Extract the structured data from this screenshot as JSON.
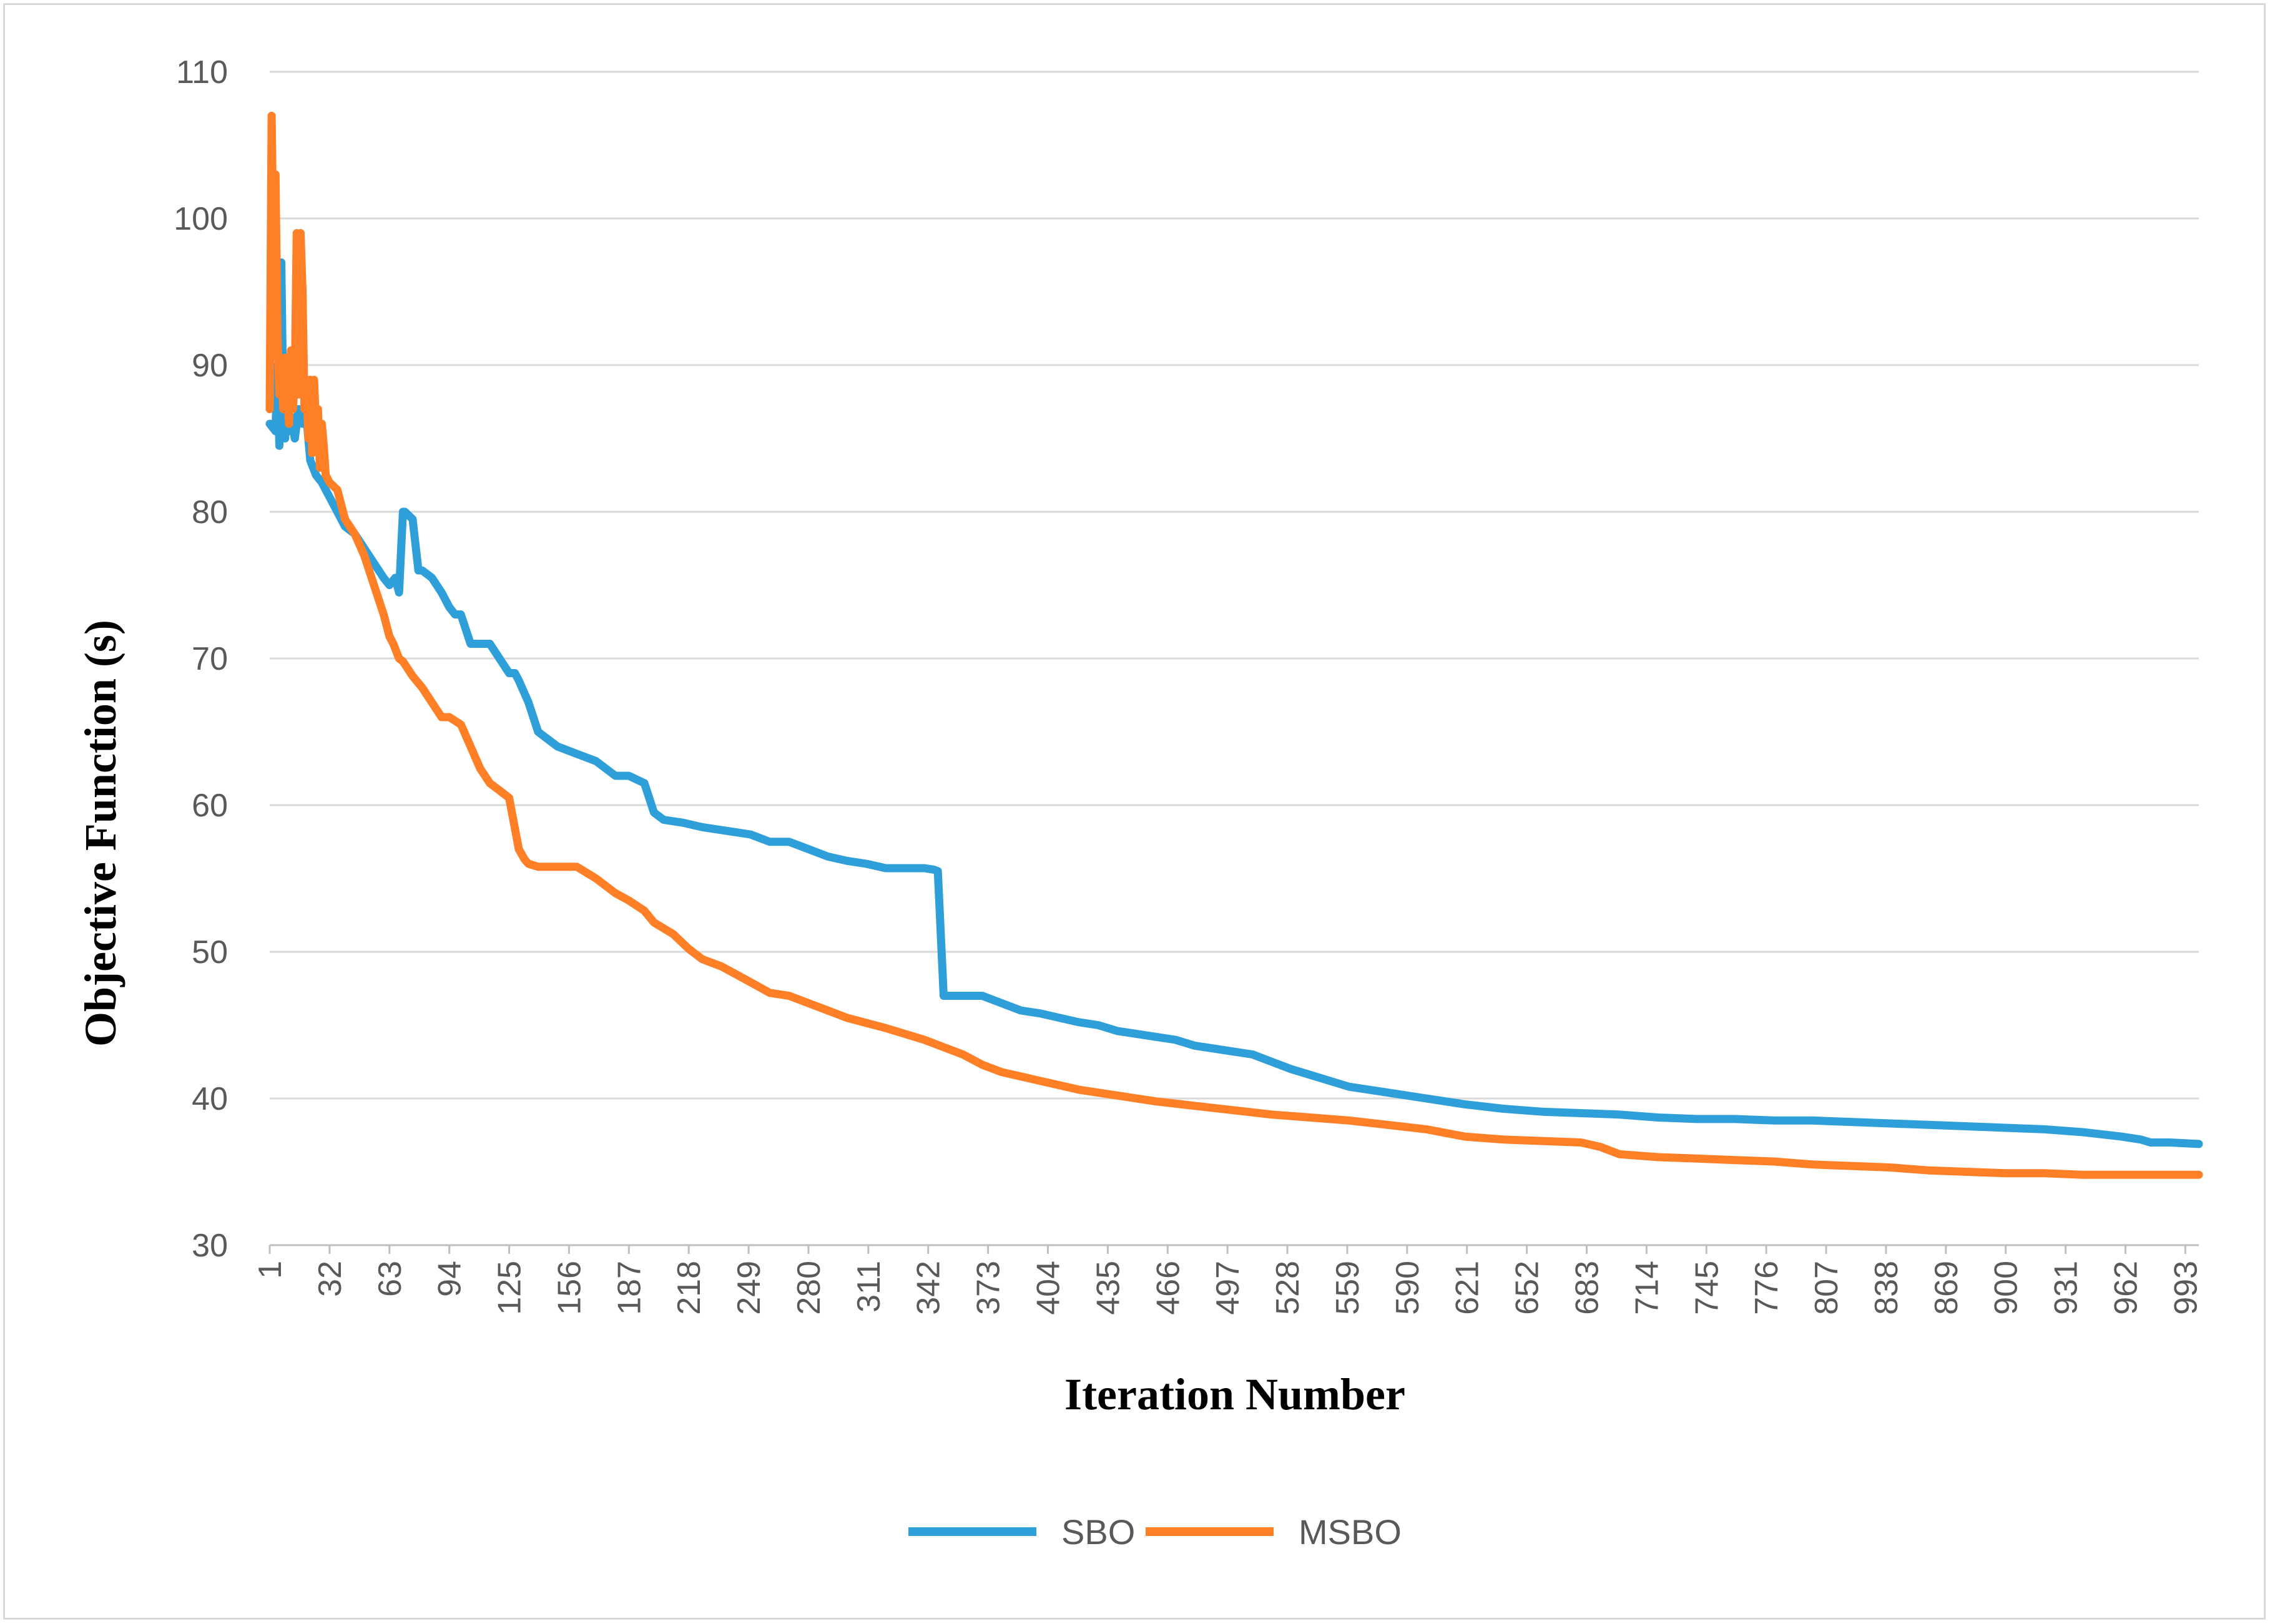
{
  "chart_data": {
    "type": "line",
    "title": "",
    "xlabel": "Iteration Number",
    "ylabel": "Objective Function (s)",
    "ylim": [
      30,
      110
    ],
    "yticks": [
      30,
      40,
      50,
      60,
      70,
      80,
      90,
      100,
      110
    ],
    "xlim": [
      1,
      1000
    ],
    "xticks": [
      "1",
      "32",
      "63",
      "94",
      "125",
      "156",
      "187",
      "218",
      "249",
      "280",
      "311",
      "342",
      "373",
      "404",
      "435",
      "466",
      "497",
      "528",
      "559",
      "590",
      "621",
      "652",
      "683",
      "714",
      "745",
      "776",
      "807",
      "838",
      "869",
      "900",
      "931",
      "962",
      "993"
    ],
    "grid": true,
    "legend_position": "bottom",
    "colors": {
      "SBO": "#2e9fd8",
      "MSBO": "#ff7f27",
      "grid": "#d9d9d9"
    },
    "series": [
      {
        "name": "SBO",
        "x": [
          1,
          4,
          5,
          6,
          7,
          8,
          9,
          10,
          11,
          12,
          14,
          16,
          18,
          20,
          22,
          25,
          28,
          32,
          36,
          40,
          45,
          50,
          55,
          60,
          63,
          66,
          68,
          70,
          71,
          75,
          78,
          80,
          85,
          90,
          94,
          97,
          100,
          105,
          110,
          115,
          120,
          125,
          128,
          130,
          135,
          140,
          145,
          150,
          160,
          170,
          180,
          187,
          195,
          200,
          205,
          215,
          225,
          240,
          250,
          260,
          270,
          280,
          290,
          300,
          310,
          320,
          330,
          340,
          345,
          347,
          350,
          355,
          360,
          370,
          380,
          390,
          400,
          410,
          420,
          430,
          440,
          450,
          460,
          470,
          480,
          490,
          500,
          510,
          520,
          530,
          540,
          550,
          560,
          580,
          600,
          620,
          640,
          660,
          680,
          700,
          720,
          740,
          760,
          780,
          800,
          820,
          840,
          860,
          880,
          900,
          920,
          940,
          960,
          970,
          975,
          985,
          1000
        ],
        "values": [
          86,
          85.5,
          90,
          84.5,
          97,
          87,
          85,
          87,
          85.5,
          86.5,
          85,
          87,
          86,
          86.5,
          83.5,
          82.5,
          82,
          81,
          80,
          79,
          78.5,
          77.5,
          76.5,
          75.5,
          75,
          75.5,
          74.5,
          80,
          80,
          79.5,
          76,
          76,
          75.5,
          74.5,
          73.5,
          73,
          73,
          71,
          71,
          71,
          70,
          69,
          69,
          68.5,
          67,
          65,
          64.5,
          64,
          63.5,
          63,
          62,
          62,
          61.5,
          59.5,
          59,
          58.8,
          58.5,
          58.2,
          58,
          57.5,
          57.5,
          57,
          56.5,
          56.2,
          56,
          55.7,
          55.7,
          55.7,
          55.6,
          55.5,
          47,
          47,
          47,
          47,
          46.5,
          46,
          45.8,
          45.5,
          45.2,
          45,
          44.6,
          44.4,
          44.2,
          44,
          43.6,
          43.4,
          43.2,
          43,
          42.5,
          42,
          41.6,
          41.2,
          40.8,
          40.4,
          40,
          39.6,
          39.3,
          39.1,
          39,
          38.9,
          38.7,
          38.6,
          38.6,
          38.5,
          38.5,
          38.4,
          38.3,
          38.2,
          38.1,
          38,
          37.9,
          37.7,
          37.4,
          37.2,
          37,
          37,
          36.9
        ]
      },
      {
        "name": "MSBO",
        "x": [
          1,
          2,
          3,
          4,
          5,
          6,
          7,
          8,
          9,
          10,
          11,
          12,
          13,
          14,
          15,
          16,
          17,
          18,
          19,
          20,
          21,
          22,
          23,
          24,
          25,
          26,
          27,
          28,
          29,
          30,
          32,
          36,
          40,
          45,
          50,
          55,
          60,
          63,
          65,
          68,
          70,
          75,
          80,
          85,
          90,
          94,
          100,
          105,
          110,
          115,
          120,
          125,
          130,
          133,
          135,
          140,
          150,
          160,
          170,
          180,
          187,
          195,
          200,
          210,
          218,
          225,
          235,
          249,
          260,
          270,
          280,
          290,
          300,
          320,
          340,
          350,
          360,
          370,
          380,
          400,
          420,
          440,
          460,
          480,
          500,
          520,
          540,
          560,
          580,
          600,
          620,
          640,
          660,
          680,
          690,
          700,
          720,
          740,
          760,
          780,
          800,
          820,
          840,
          860,
          880,
          900,
          920,
          940,
          960,
          980,
          1000
        ],
        "values": [
          87,
          107,
          97,
          103,
          92,
          88,
          90,
          87,
          90.5,
          88,
          86,
          91,
          87,
          89,
          99,
          88,
          99,
          95,
          87,
          89,
          85,
          89,
          84,
          89,
          85.5,
          87,
          83,
          86,
          84.5,
          82.5,
          82,
          81.5,
          79.5,
          78.5,
          77,
          75,
          73,
          71.5,
          71,
          70,
          69.8,
          68.8,
          68,
          67,
          66,
          66,
          65.5,
          64,
          62.5,
          61.5,
          61,
          60.5,
          57,
          56.3,
          56,
          55.8,
          55.8,
          55.8,
          55,
          54,
          53.5,
          52.8,
          52,
          51.2,
          50.2,
          49.5,
          49,
          48,
          47.2,
          47,
          46.5,
          46,
          45.5,
          44.8,
          44,
          43.5,
          43,
          42.3,
          41.8,
          41.2,
          40.6,
          40.2,
          39.8,
          39.5,
          39.2,
          38.9,
          38.7,
          38.5,
          38.2,
          37.9,
          37.4,
          37.2,
          37.1,
          37,
          36.7,
          36.2,
          36,
          35.9,
          35.8,
          35.7,
          35.5,
          35.4,
          35.3,
          35.1,
          35,
          34.9,
          34.9,
          34.8,
          34.8,
          34.8,
          34.8
        ]
      }
    ]
  }
}
